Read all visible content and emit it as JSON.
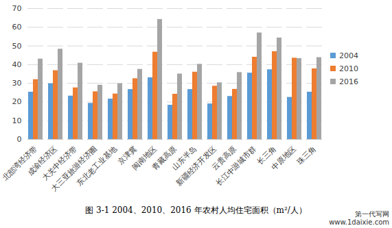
{
  "chart_data": {
    "type": "bar",
    "caption": "图 3-1   2004、2010、2016 年农村人均住宅面积（m²/人）",
    "watermark": [
      "第一代写网",
      "www.1daixie.com"
    ],
    "categories": [
      "北部湾经济带",
      "成渝经济区",
      "大关中经济带",
      "大三亚旅游经济圈",
      "东北老工业基地",
      "京津冀",
      "闽南地区",
      "青藏高原",
      "山东半岛",
      "新疆经济开发区",
      "云贵高原",
      "长江中游城市群",
      "长三角",
      "中原地区",
      "珠三角"
    ],
    "series": [
      {
        "name": "2004",
        "color": "#5b9bd5",
        "values": [
          25.3,
          29.8,
          23.2,
          19.3,
          21.6,
          26.7,
          33.0,
          18.3,
          26.7,
          19.0,
          23.0,
          35.5,
          37.3,
          22.5,
          25.3
        ]
      },
      {
        "name": "2010",
        "color": "#ed7d31",
        "values": [
          32.0,
          36.8,
          27.6,
          25.5,
          24.3,
          32.5,
          46.7,
          24.2,
          36.0,
          28.5,
          26.8,
          44.0,
          47.0,
          43.5,
          37.8
        ]
      },
      {
        "name": "2016",
        "color": "#a5a5a5",
        "values": [
          43.0,
          48.3,
          40.8,
          29.0,
          29.8,
          37.5,
          64.2,
          35.0,
          40.2,
          30.3,
          35.8,
          57.0,
          54.3,
          43.3,
          43.8
        ]
      }
    ],
    "ylim": [
      0,
      70
    ],
    "yticks": [
      0,
      10,
      20,
      30,
      40,
      50,
      60,
      70
    ],
    "grid": true,
    "legend": "right"
  }
}
